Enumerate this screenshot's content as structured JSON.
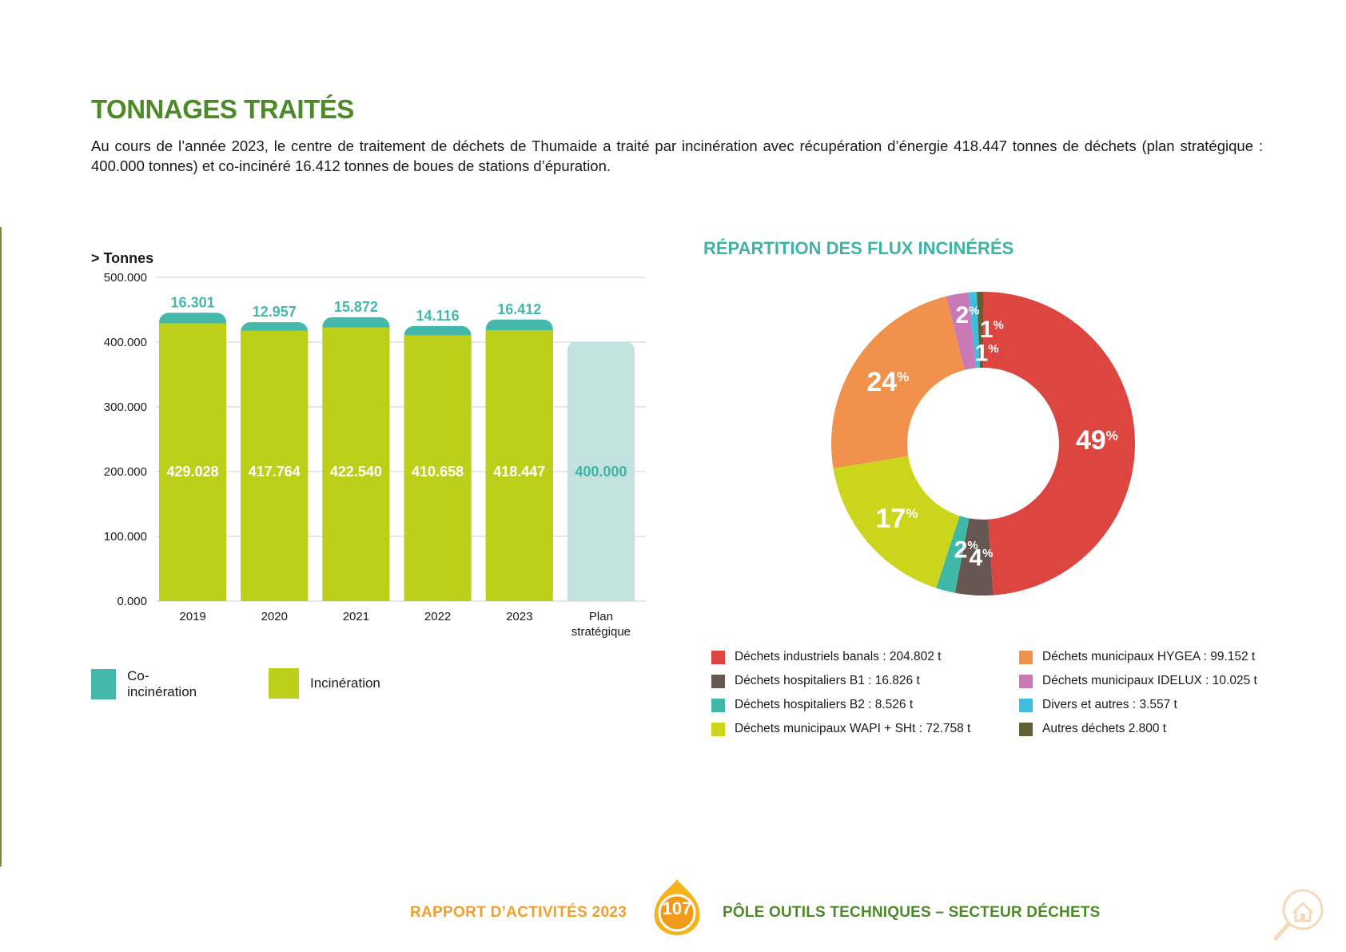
{
  "page": {
    "title": "TONNAGES TRAITÉS",
    "intro": "Au cours de l’année 2023, le centre de traitement de déchets de Thumaide a traité par incinération avec récupération d’énergie 418.447 tonnes de déchets (plan stratégique : 400.000 tonnes) et co-incinéré 16.412 tonnes de boues de stations d’épuration."
  },
  "colors": {
    "title_green": "#4b8a26",
    "teal": "#45b8ac",
    "lime": "#bccf1a",
    "plan": "#c2e2df",
    "orange": "#f0a030"
  },
  "chart_data": [
    {
      "type": "bar",
      "stacked": true,
      "unit_label": "> Tonnes",
      "categories": [
        "2019",
        "2020",
        "2021",
        "2022",
        "2023",
        "Plan stratégique"
      ],
      "category_lines": [
        [
          "2019"
        ],
        [
          "2020"
        ],
        [
          "2021"
        ],
        [
          "2022"
        ],
        [
          "2023"
        ],
        [
          "Plan",
          "stratégique"
        ]
      ],
      "series": [
        {
          "name": "Incinération",
          "color": "#bccf1a",
          "values": [
            429028,
            417764,
            422540,
            410658,
            418447,
            null
          ],
          "labels": [
            "429.028",
            "417.764",
            "422.540",
            "410.658",
            "418.447",
            null
          ]
        },
        {
          "name": "Co-incinération",
          "color": "#45b8ac",
          "values": [
            16301,
            12957,
            15872,
            14116,
            16412,
            null
          ],
          "labels": [
            "16.301",
            "12.957",
            "15.872",
            "14.116",
            "16.412",
            null
          ]
        },
        {
          "name": "Plan stratégique",
          "color": "#c2e2df",
          "values": [
            null,
            null,
            null,
            null,
            null,
            400000
          ],
          "labels": [
            null,
            null,
            null,
            null,
            null,
            "400.000"
          ]
        }
      ],
      "y_ticks": [
        0,
        100000,
        200000,
        300000,
        400000,
        500000
      ],
      "y_tick_labels": [
        "0.000",
        "100.000",
        "200.000",
        "300.000",
        "400.000",
        "500.000"
      ],
      "ylim": [
        0,
        500000
      ],
      "legend": [
        {
          "name": "Co-incinération",
          "color": "#45b8ac"
        },
        {
          "name": "Incinération",
          "color": "#bccf1a"
        }
      ]
    },
    {
      "type": "pie",
      "donut": true,
      "title": "RÉPARTITION DES FLUX INCINÉRÉS",
      "slices": [
        {
          "name": "Déchets industriels banals : 204.802 t",
          "value": 204802,
          "pct": "49",
          "color": "#dd4640"
        },
        {
          "name": "Déchets hospitaliers B1 : 16.826 t",
          "value": 16826,
          "pct": "4",
          "color": "#665752"
        },
        {
          "name": "Déchets hospitaliers B2 : 8.526 t",
          "value": 8526,
          "pct": "2",
          "color": "#3fb8a6"
        },
        {
          "name": "Déchets municipaux WAPI + SHt : 72.758 t",
          "value": 72758,
          "pct": "17",
          "color": "#cad51c"
        },
        {
          "name": "Déchets municipaux HYGEA : 99.152 t",
          "value": 99152,
          "pct": "24",
          "color": "#f0924c"
        },
        {
          "name": "Déchets municipaux IDELUX : 10.025 t",
          "value": 10025,
          "pct": "2",
          "color": "#c97ab6"
        },
        {
          "name": "Divers et autres : 3.557 t",
          "value": 3557,
          "pct": "1",
          "color": "#3dbde0"
        },
        {
          "name": "Autres déchets 2.800 t",
          "value": 2800,
          "pct": "1",
          "color": "#5f6133"
        }
      ],
      "pct_suffix": "%"
    }
  ],
  "footer": {
    "report": "RAPPORT D’ACTIVITÉS 2023",
    "page_number": "107",
    "section": "PÔLE OUTILS TECHNIQUES – SECTEUR DÉCHETS"
  }
}
